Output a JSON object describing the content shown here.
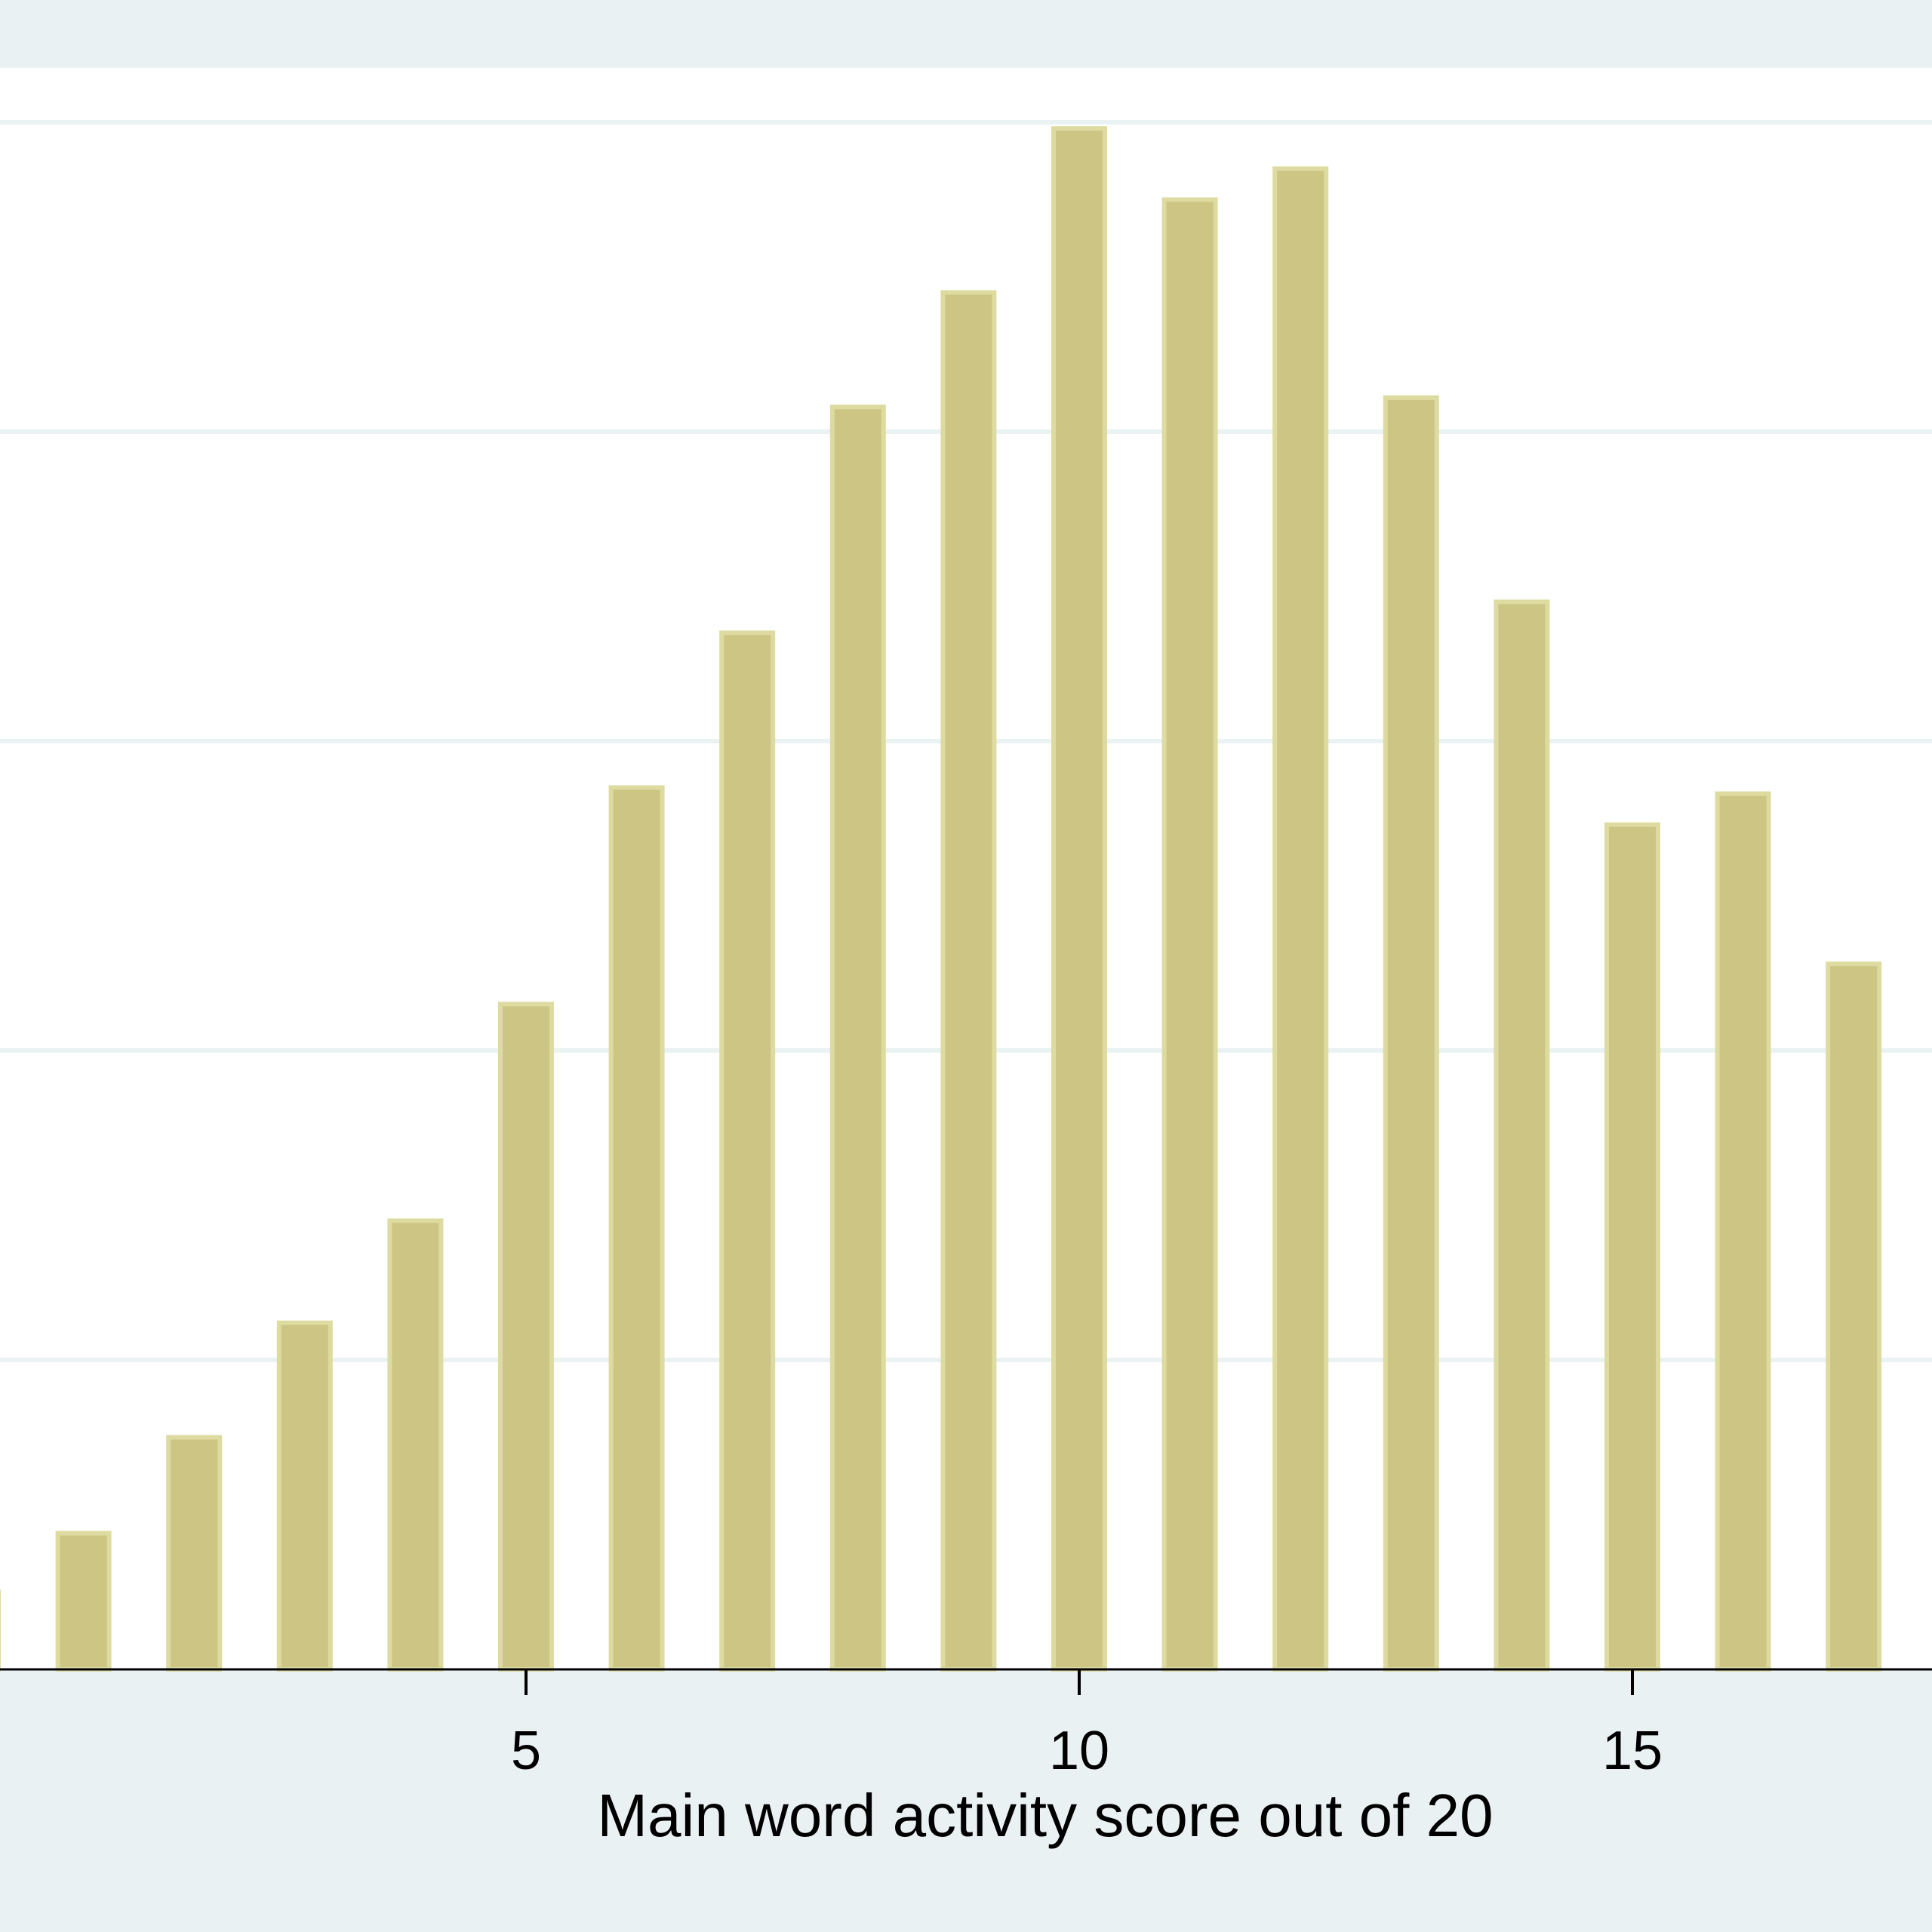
{
  "chart_data": {
    "type": "bar",
    "title": "",
    "xlabel": "Main word activity score out of 20",
    "ylabel": "",
    "x": [
      0,
      1,
      2,
      3,
      4,
      5,
      6,
      7,
      8,
      9,
      10,
      11,
      12,
      13,
      14,
      15,
      16,
      17
    ],
    "values": [
      0.25,
      0.44,
      0.75,
      1.12,
      1.45,
      2.15,
      2.85,
      3.35,
      4.08,
      4.45,
      4.98,
      4.75,
      4.85,
      4.11,
      3.45,
      2.73,
      2.83,
      2.28
    ],
    "xlim": [
      -0.5,
      17.5
    ],
    "ylim": [
      0,
      5.1
    ],
    "xticks": [
      5,
      10,
      15
    ],
    "ygrid": [
      1,
      2,
      3,
      4,
      5
    ],
    "grid": true,
    "colors": {
      "background": "#eaf1f3",
      "plot_background": "#ffffff",
      "bar_fill": "#ccc584",
      "bar_outline": "#dedba0",
      "grid": "#eaf2f3",
      "axis": "#000000"
    }
  }
}
